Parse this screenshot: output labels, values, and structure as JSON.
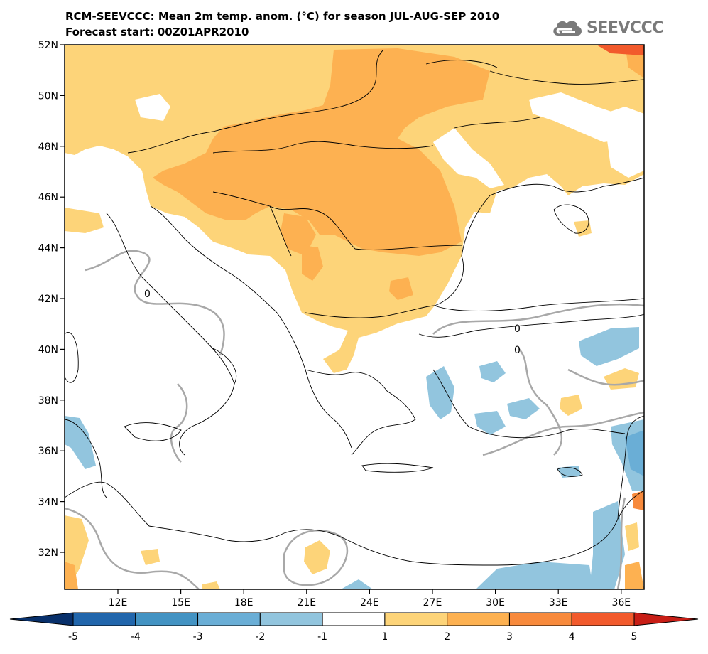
{
  "title_line1": "RCM-SEEVCCC: Mean 2m temp. anom. (°C) for season JUL-AUG-SEP 2010",
  "title_line2": "Forecast start: 00Z01APR2010",
  "logo_text": "SEEVCCC",
  "logo_icon": "cloud-icon",
  "map": {
    "lat_labels": [
      "52N",
      "50N",
      "48N",
      "46N",
      "44N",
      "42N",
      "40N",
      "38N",
      "36N",
      "34N",
      "32N"
    ],
    "lon_labels": [
      "12E",
      "15E",
      "18E",
      "21E",
      "24E",
      "27E",
      "30E",
      "33E",
      "36E"
    ],
    "contour_label": "0"
  },
  "colorbar": {
    "ticks": [
      "-5",
      "-4",
      "-3",
      "-2",
      "-1",
      "1",
      "2",
      "3",
      "4",
      "5"
    ],
    "colors": [
      "#2166ac",
      "#4393c3",
      "#6aaed6",
      "#92c5de",
      "#ffffff",
      "#fdd479",
      "#fdb151",
      "#f88a3c",
      "#f25a2c"
    ],
    "under_color": "#08306b",
    "over_color": "#c81e16"
  }
}
